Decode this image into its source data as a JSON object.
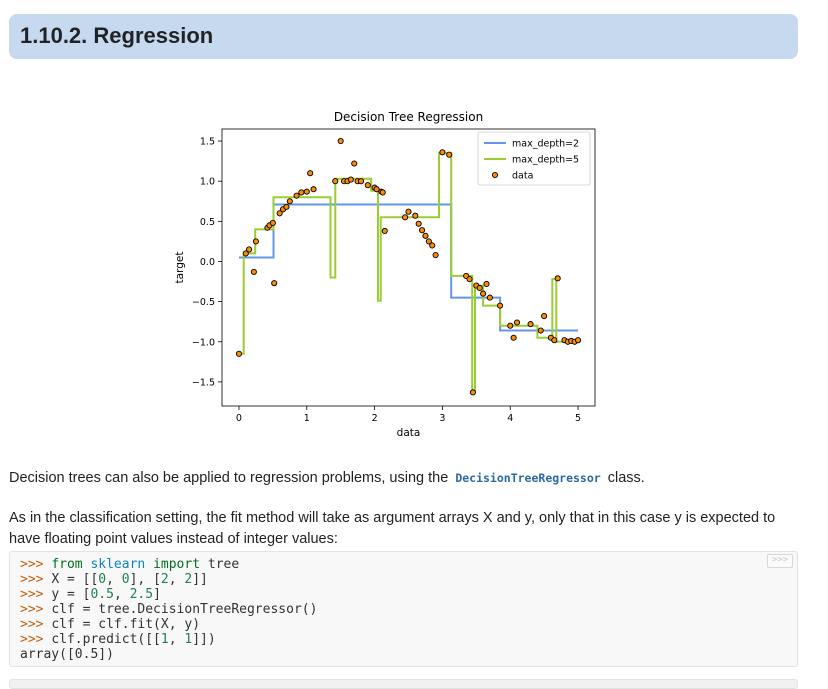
{
  "header": {
    "title": "1.10.2. Regression"
  },
  "paragraph1": {
    "before": "Decision trees can also be applied to regression problems, using the ",
    "code": "DecisionTreeRegressor",
    "after": " class."
  },
  "paragraph2": {
    "text": "As in the classification setting, the fit method will take as argument arrays X and y, only that in this case y is expected to have floating point values instead of integer values:"
  },
  "code_block": {
    "copy_button": ">>>",
    "lines": [
      [
        [
          "prompt",
          ">>> "
        ],
        [
          "kw",
          "from"
        ],
        [
          "t",
          " "
        ],
        [
          "ns",
          "sklearn"
        ],
        [
          "t",
          " "
        ],
        [
          "kw",
          "import"
        ],
        [
          "t",
          " tree"
        ]
      ],
      [
        [
          "prompt",
          ">>> "
        ],
        [
          "t",
          "X = [["
        ],
        [
          "num",
          "0"
        ],
        [
          "t",
          ", "
        ],
        [
          "num",
          "0"
        ],
        [
          "t",
          "], ["
        ],
        [
          "num",
          "2"
        ],
        [
          "t",
          ", "
        ],
        [
          "num",
          "2"
        ],
        [
          "t",
          "]]"
        ]
      ],
      [
        [
          "prompt",
          ">>> "
        ],
        [
          "t",
          "y = ["
        ],
        [
          "num",
          "0.5"
        ],
        [
          "t",
          ", "
        ],
        [
          "num",
          "2.5"
        ],
        [
          "t",
          "]"
        ]
      ],
      [
        [
          "prompt",
          ">>> "
        ],
        [
          "t",
          "clf = tree.DecisionTreeRegressor()"
        ]
      ],
      [
        [
          "prompt",
          ">>> "
        ],
        [
          "t",
          "clf = clf.fit(X, y)"
        ]
      ],
      [
        [
          "prompt",
          ">>> "
        ],
        [
          "t",
          "clf.predict([["
        ],
        [
          "num",
          "1"
        ],
        [
          "t",
          ", "
        ],
        [
          "num",
          "1"
        ],
        [
          "t",
          "]])"
        ]
      ],
      [
        [
          "t",
          "array([0.5])"
        ]
      ]
    ]
  },
  "chart_data": {
    "type": "line",
    "title": "Decision Tree Regression",
    "xlabel": "data",
    "ylabel": "target",
    "xlim": [
      -0.25,
      5.25
    ],
    "ylim": [
      -1.8,
      1.65
    ],
    "xticks": [
      0,
      1,
      2,
      3,
      4,
      5
    ],
    "yticks": [
      -1.5,
      -1.0,
      -0.5,
      0.0,
      0.5,
      1.0,
      1.5
    ],
    "ytick_labels": [
      "−1.5",
      "−1.0",
      "−0.5",
      "0.0",
      "0.5",
      "1.0",
      "1.5"
    ],
    "legend_position": "top-right",
    "grid": false,
    "colors": {
      "max_depth_2": "#6495ed",
      "max_depth_5": "#9acd32",
      "data_fill": "#ff8c00",
      "data_edge": "#000000"
    },
    "series": [
      {
        "name": "max_depth=2",
        "style": "step",
        "x": [
          0,
          0.51,
          0.51,
          3.13,
          3.13,
          3.85,
          3.85,
          5
        ],
        "y": [
          0.05,
          0.05,
          0.71,
          0.71,
          -0.45,
          -0.45,
          -0.86,
          -0.86
        ]
      },
      {
        "name": "max_depth=5",
        "style": "step",
        "x": [
          0,
          0.07,
          0.07,
          0.24,
          0.24,
          0.51,
          0.51,
          1.35,
          1.35,
          1.42,
          1.42,
          1.95,
          1.95,
          2.05,
          2.05,
          2.09,
          2.09,
          2.95,
          2.95,
          3.13,
          3.13,
          3.44,
          3.44,
          3.48,
          3.48,
          3.6,
          3.6,
          3.85,
          3.85,
          4.4,
          4.4,
          4.62,
          4.62,
          4.68,
          4.68,
          5
        ],
        "y": [
          -1.15,
          -1.15,
          0.1,
          0.1,
          0.4,
          0.4,
          0.8,
          0.8,
          -0.2,
          -0.2,
          1.03,
          1.03,
          0.88,
          0.88,
          -0.49,
          -0.49,
          0.55,
          0.55,
          1.35,
          1.35,
          -0.18,
          -0.18,
          -1.62,
          -1.62,
          -0.3,
          -0.3,
          -0.55,
          -0.55,
          -0.8,
          -0.8,
          -0.95,
          -0.95,
          -0.22,
          -0.22,
          -1.0,
          -1.0
        ]
      },
      {
        "name": "data",
        "style": "scatter",
        "x": [
          0.0,
          0.1,
          0.15,
          0.22,
          0.25,
          0.42,
          0.45,
          0.5,
          0.52,
          0.6,
          0.65,
          0.7,
          0.75,
          0.85,
          0.92,
          1.0,
          1.05,
          1.1,
          1.42,
          1.5,
          1.55,
          1.6,
          1.65,
          1.7,
          1.75,
          1.8,
          1.9,
          2.0,
          2.03,
          2.1,
          2.12,
          2.15,
          2.45,
          2.5,
          2.6,
          2.65,
          2.7,
          2.75,
          2.8,
          2.85,
          2.9,
          3.0,
          3.1,
          3.35,
          3.4,
          3.45,
          3.5,
          3.55,
          3.6,
          3.65,
          3.7,
          3.85,
          4.0,
          4.05,
          4.1,
          4.3,
          4.45,
          4.5,
          4.6,
          4.65,
          4.7,
          4.8,
          4.85,
          4.9,
          4.95,
          5.0
        ],
        "y": [
          -1.15,
          0.1,
          0.15,
          -0.13,
          0.25,
          0.42,
          0.45,
          0.48,
          -0.27,
          0.6,
          0.65,
          0.68,
          0.75,
          0.82,
          0.86,
          0.87,
          1.1,
          0.9,
          1.0,
          1.5,
          1.0,
          1.0,
          1.02,
          1.22,
          1.0,
          1.0,
          0.95,
          0.92,
          0.9,
          0.87,
          0.86,
          0.38,
          0.55,
          0.62,
          0.57,
          0.47,
          0.39,
          0.32,
          0.25,
          0.2,
          0.08,
          1.36,
          1.33,
          -0.18,
          -0.22,
          -1.63,
          -0.3,
          -0.33,
          -0.4,
          -0.28,
          -0.45,
          -0.55,
          -0.8,
          -0.95,
          -0.76,
          -0.78,
          -0.86,
          -0.68,
          -0.95,
          -0.98,
          -0.21,
          -0.98,
          -1.0,
          -0.99,
          -1.0,
          -0.98
        ]
      }
    ]
  }
}
